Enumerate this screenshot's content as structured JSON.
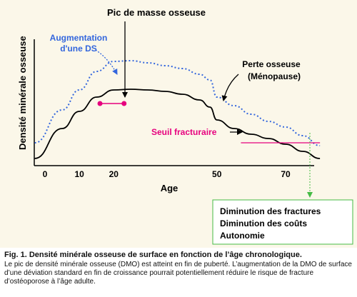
{
  "chart_data": {
    "type": "line",
    "title": "Pic de masse osseuse",
    "xlabel": "Age",
    "ylabel": "Densité minérale osseuse",
    "x_ticks": [
      0,
      10,
      20,
      50,
      70
    ],
    "xlim": [
      -3,
      82
    ],
    "series": [
      {
        "name": "",
        "style": "solid",
        "color": "#000000",
        "x": [
          -3,
          5,
          10,
          15,
          20,
          25,
          30,
          35,
          40,
          45,
          48,
          50,
          55,
          60,
          65,
          70,
          75,
          80
        ],
        "y": [
          0.5,
          2.6,
          3.8,
          4.8,
          5.3,
          5.35,
          5.3,
          5.2,
          5.0,
          4.6,
          4.1,
          3.2,
          2.6,
          2.2,
          1.9,
          1.5,
          1.0,
          0.5
        ]
      },
      {
        "name": "Augmentation d'une DS",
        "style": "dotted",
        "color": "#3366dd",
        "x": [
          -3,
          5,
          10,
          15,
          20,
          25,
          30,
          35,
          40,
          45,
          48,
          50,
          55,
          60,
          65,
          70,
          75,
          80
        ],
        "y": [
          1.6,
          3.9,
          5.3,
          6.6,
          7.3,
          7.35,
          7.2,
          7.0,
          6.8,
          6.4,
          6.0,
          4.8,
          4.2,
          3.6,
          3.1,
          2.7,
          2.1,
          1.4
        ]
      }
    ],
    "bracket": {
      "x1": 16,
      "x2": 23,
      "y": 4.35,
      "color": "#e6007e"
    },
    "threshold": {
      "x1": 57,
      "x2": 80,
      "y": 1.6,
      "color": "#e6007e",
      "label": "Seuil fracturaire"
    },
    "annotations": {
      "peak": "Pic de masse osseuse",
      "ds_line1": "Augmentation",
      "ds_line2": "d'une DS",
      "loss_line1": "Perte osseuse",
      "loss_line2": "(Ménopause)"
    },
    "outcome_box": [
      "Diminution des fractures",
      "Diminution des coûts",
      "Autonomie"
    ],
    "colors": {
      "background": "#fbf7e9",
      "magenta": "#e6007e",
      "blue": "#3366dd",
      "green": "#44bb44"
    }
  },
  "caption": {
    "title": "Fig. 1. Densité minérale osseuse de surface en fonction de l’âge chronologique.",
    "body": "Le pic de densité minérale osseuse (DMO) est atteint en fin de puberté. L’augmentation de la DMO de surface d’une déviation standard en fin de croissance pourrait potentiellement réduire le risque de fracture d’ostéoporose à l’âge adulte."
  }
}
